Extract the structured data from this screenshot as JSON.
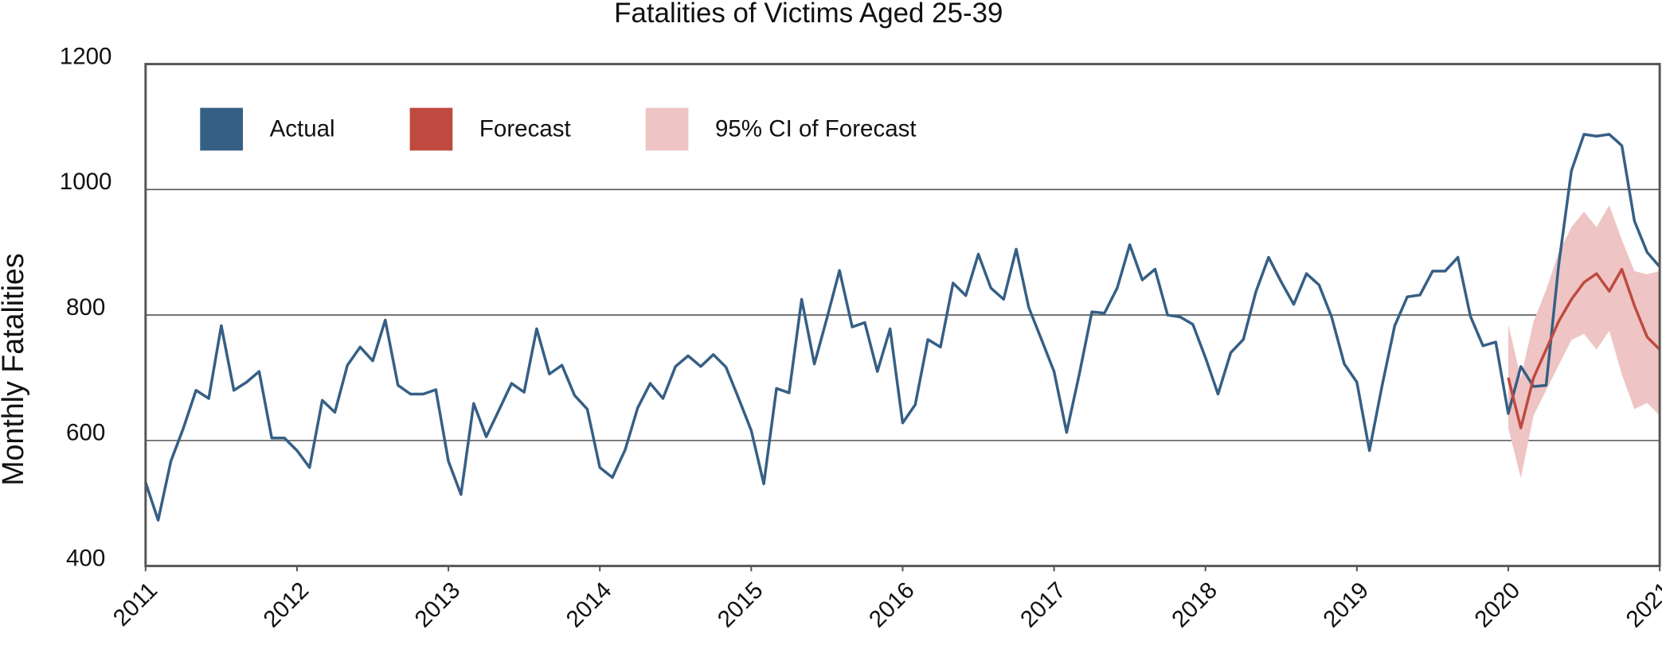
{
  "chart_data": {
    "type": "line",
    "title": "Fatalities of Victims Aged 25-39",
    "y_label": "Monthly Fatalities",
    "x": [
      2011,
      2011.083,
      2011.167,
      2011.25,
      2011.333,
      2011.417,
      2011.5,
      2011.583,
      2011.667,
      2011.75,
      2011.833,
      2011.917,
      2012,
      2012.083,
      2012.167,
      2012.25,
      2012.333,
      2012.417,
      2012.5,
      2012.583,
      2012.667,
      2012.75,
      2012.833,
      2012.917,
      2013,
      2013.083,
      2013.167,
      2013.25,
      2013.333,
      2013.417,
      2013.5,
      2013.583,
      2013.667,
      2013.75,
      2013.833,
      2013.917,
      2014,
      2014.083,
      2014.167,
      2014.25,
      2014.333,
      2014.417,
      2014.5,
      2014.583,
      2014.667,
      2014.75,
      2014.833,
      2014.917,
      2015,
      2015.083,
      2015.167,
      2015.25,
      2015.333,
      2015.417,
      2015.5,
      2015.583,
      2015.667,
      2015.75,
      2015.833,
      2015.917,
      2016,
      2016.083,
      2016.167,
      2016.25,
      2016.333,
      2016.417,
      2016.5,
      2016.583,
      2016.667,
      2016.75,
      2016.833,
      2016.917,
      2017,
      2017.083,
      2017.167,
      2017.25,
      2017.333,
      2017.417,
      2017.5,
      2017.583,
      2017.667,
      2017.75,
      2017.833,
      2017.917,
      2018,
      2018.083,
      2018.167,
      2018.25,
      2018.333,
      2018.417,
      2018.5,
      2018.583,
      2018.667,
      2018.75,
      2018.833,
      2018.917,
      2019,
      2019.083,
      2019.167,
      2019.25,
      2019.333,
      2019.417,
      2019.5,
      2019.583,
      2019.667,
      2019.75,
      2019.833,
      2019.917,
      2020,
      2020.083,
      2020.167,
      2020.25,
      2020.333,
      2020.417,
      2020.5,
      2020.583,
      2020.667,
      2020.75,
      2020.833,
      2020.917,
      2021
    ],
    "series": [
      {
        "name": "Actual",
        "color": "#365f85",
        "values": [
          533,
          473,
          567,
          620,
          680,
          667,
          783,
          680,
          693,
          710,
          604,
          604,
          584,
          557,
          664,
          645,
          720,
          749,
          727,
          792,
          688,
          674,
          674,
          681,
          567,
          514,
          659,
          606,
          648,
          691,
          677,
          778,
          706,
          720,
          672,
          650,
          557,
          541,
          585,
          652,
          691,
          667,
          718,
          735,
          718,
          737,
          717,
          667,
          616,
          531,
          683,
          676,
          825,
          722,
          795,
          871,
          781,
          788,
          710,
          778,
          628,
          657,
          761,
          749,
          851,
          831,
          897,
          843,
          825,
          905,
          812,
          761,
          710,
          613,
          706,
          805,
          803,
          843,
          912,
          856,
          873,
          800,
          797,
          785,
          732,
          674,
          740,
          761,
          837,
          892,
          853,
          817,
          866,
          848,
          797,
          722,
          693,
          584,
          688,
          783,
          829,
          832,
          870,
          870,
          892,
          798,
          751,
          757,
          643,
          718,
          686,
          688,
          880,
          1030,
          1088,
          1085,
          1088,
          1070,
          950,
          900,
          877
        ]
      },
      {
        "name": "Forecast",
        "color": "#bf4a40",
        "values": [
          null,
          null,
          null,
          null,
          null,
          null,
          null,
          null,
          null,
          null,
          null,
          null,
          null,
          null,
          null,
          null,
          null,
          null,
          null,
          null,
          null,
          null,
          null,
          null,
          null,
          null,
          null,
          null,
          null,
          null,
          null,
          null,
          null,
          null,
          null,
          null,
          null,
          null,
          null,
          null,
          null,
          null,
          null,
          null,
          null,
          null,
          null,
          null,
          null,
          null,
          null,
          null,
          null,
          null,
          null,
          null,
          null,
          null,
          null,
          null,
          null,
          null,
          null,
          null,
          null,
          null,
          null,
          null,
          null,
          null,
          null,
          null,
          null,
          null,
          null,
          null,
          null,
          null,
          null,
          null,
          null,
          null,
          null,
          null,
          null,
          null,
          null,
          null,
          null,
          null,
          null,
          null,
          null,
          null,
          null,
          null,
          null,
          null,
          null,
          null,
          null,
          null,
          null,
          null,
          null,
          null,
          null,
          null,
          700,
          620,
          700,
          745,
          790,
          825,
          852,
          866,
          838,
          873,
          815,
          765,
          745
        ]
      },
      {
        "name": "95% CI of Forecast",
        "color": "#eec5c4",
        "lower": [
          null,
          null,
          null,
          null,
          null,
          null,
          null,
          null,
          null,
          null,
          null,
          null,
          null,
          null,
          null,
          null,
          null,
          null,
          null,
          null,
          null,
          null,
          null,
          null,
          null,
          null,
          null,
          null,
          null,
          null,
          null,
          null,
          null,
          null,
          null,
          null,
          null,
          null,
          null,
          null,
          null,
          null,
          null,
          null,
          null,
          null,
          null,
          null,
          null,
          null,
          null,
          null,
          null,
          null,
          null,
          null,
          null,
          null,
          null,
          null,
          null,
          null,
          null,
          null,
          null,
          null,
          null,
          null,
          null,
          null,
          null,
          null,
          null,
          null,
          null,
          null,
          null,
          null,
          null,
          null,
          null,
          null,
          null,
          null,
          null,
          null,
          null,
          null,
          null,
          null,
          null,
          null,
          null,
          null,
          null,
          null,
          null,
          null,
          null,
          null,
          null,
          null,
          null,
          null,
          null,
          null,
          null,
          null,
          620,
          540,
          640,
          680,
          720,
          760,
          770,
          745,
          775,
          705,
          650,
          660,
          640
        ],
        "upper": [
          null,
          null,
          null,
          null,
          null,
          null,
          null,
          null,
          null,
          null,
          null,
          null,
          null,
          null,
          null,
          null,
          null,
          null,
          null,
          null,
          null,
          null,
          null,
          null,
          null,
          null,
          null,
          null,
          null,
          null,
          null,
          null,
          null,
          null,
          null,
          null,
          null,
          null,
          null,
          null,
          null,
          null,
          null,
          null,
          null,
          null,
          null,
          null,
          null,
          null,
          null,
          null,
          null,
          null,
          null,
          null,
          null,
          null,
          null,
          null,
          null,
          null,
          null,
          null,
          null,
          null,
          null,
          null,
          null,
          null,
          null,
          null,
          null,
          null,
          null,
          null,
          null,
          null,
          null,
          null,
          null,
          null,
          null,
          null,
          null,
          null,
          null,
          null,
          null,
          null,
          null,
          null,
          null,
          null,
          null,
          null,
          null,
          null,
          null,
          null,
          null,
          null,
          null,
          null,
          null,
          null,
          null,
          null,
          785,
          700,
          790,
          840,
          900,
          940,
          965,
          940,
          975,
          920,
          870,
          865,
          870
        ]
      }
    ],
    "xlim": [
      2011,
      2021
    ],
    "xticks": [
      2011,
      2012,
      2013,
      2014,
      2015,
      2016,
      2017,
      2018,
      2019,
      2020,
      2021
    ],
    "ylim": [
      400,
      1200
    ],
    "yticks": [
      400,
      600,
      800,
      1000,
      1200
    ],
    "grid": true,
    "legend": "upper left"
  }
}
